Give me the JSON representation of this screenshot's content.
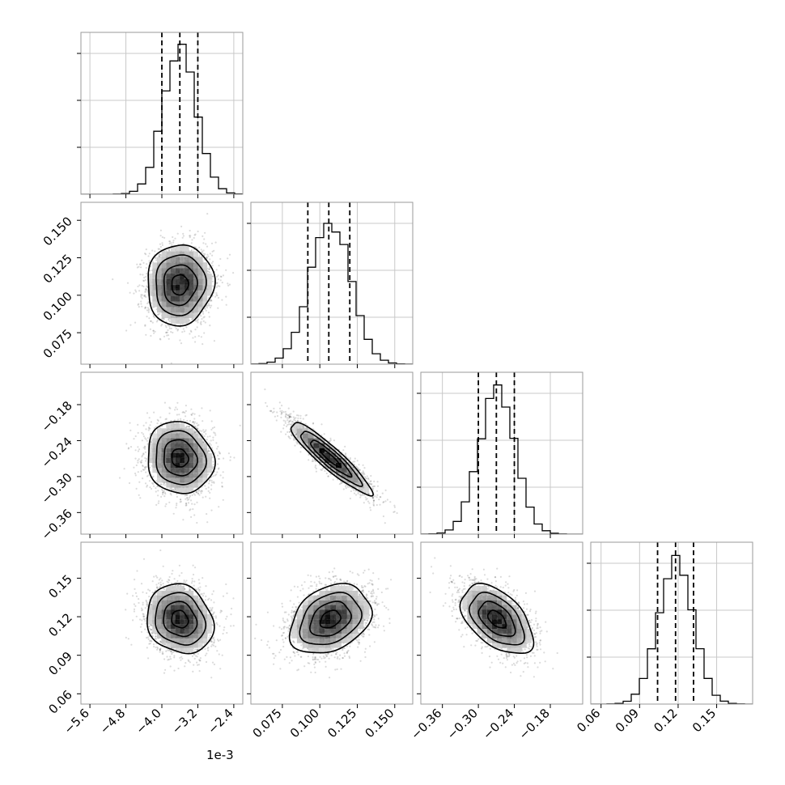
{
  "chart_data": {
    "type": "corner",
    "params": [
      {
        "range": [
          -5.8,
          -2.2
        ],
        "offset_label": "1e-3",
        "ticks": [
          {
            "v": -5.6,
            "t": "−5.6"
          },
          {
            "v": -4.8,
            "t": "−4.8"
          },
          {
            "v": -4.0,
            "t": "−4.0"
          },
          {
            "v": -3.2,
            "t": "−3.2"
          },
          {
            "v": -2.4,
            "t": "−2.4"
          }
        ],
        "quantiles": [
          -4.0,
          -3.6,
          -3.2
        ],
        "mean": -3.6,
        "sd": 0.37
      },
      {
        "range": [
          0.054,
          0.162
        ],
        "ticks": [
          {
            "v": 0.075,
            "t": "0.075"
          },
          {
            "v": 0.1,
            "t": "0.100"
          },
          {
            "v": 0.125,
            "t": "0.125"
          },
          {
            "v": 0.15,
            "t": "0.150"
          }
        ],
        "quantiles": [
          0.092,
          0.106,
          0.12
        ],
        "mean": 0.107,
        "sd": 0.0135
      },
      {
        "range": [
          -0.396,
          -0.126
        ],
        "ticks": [
          {
            "v": -0.36,
            "t": "−0.36"
          },
          {
            "v": -0.3,
            "t": "−0.30"
          },
          {
            "v": -0.24,
            "t": "−0.24"
          },
          {
            "v": -0.18,
            "t": "−0.18"
          }
        ],
        "quantiles": [
          -0.3,
          -0.27,
          -0.24
        ],
        "mean": -0.269,
        "sd": 0.03
      },
      {
        "range": [
          0.052,
          0.178
        ],
        "ticks": [
          {
            "v": 0.06,
            "t": "0.06"
          },
          {
            "v": 0.09,
            "t": "0.09"
          },
          {
            "v": 0.12,
            "t": "0.12"
          },
          {
            "v": 0.15,
            "t": "0.15"
          }
        ],
        "quantiles": [
          0.104,
          0.118,
          0.132
        ],
        "mean": 0.118,
        "sd": 0.0135
      }
    ],
    "correlations": {
      "1-0": 0.05,
      "2-0": -0.1,
      "2-1": -0.92,
      "3-0": -0.15,
      "3-1": 0.3,
      "3-2": -0.5
    },
    "histogram_bins": 20,
    "contour_levels_sigma": [
      0.5,
      1.0,
      1.5,
      2.0
    ],
    "grid": true
  }
}
